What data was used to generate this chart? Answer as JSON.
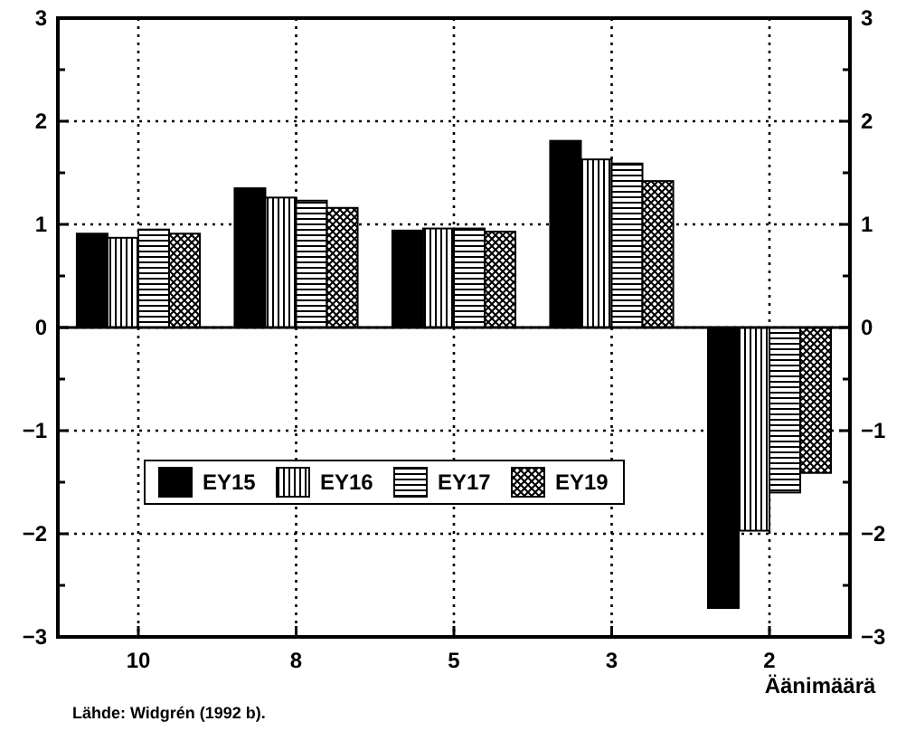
{
  "chart_data": {
    "type": "bar",
    "xlabel": "Äänimäärä",
    "categories": [
      "10",
      "8",
      "5",
      "3",
      "2"
    ],
    "series": [
      {
        "name": "EY15",
        "color": "#000000",
        "values": [
          0.91,
          1.35,
          0.94,
          1.81,
          -2.72
        ]
      },
      {
        "name": "EY16",
        "color": "#000000",
        "values": [
          0.87,
          1.26,
          0.96,
          1.63,
          -1.97
        ]
      },
      {
        "name": "EY17",
        "color": "#000000",
        "values": [
          0.95,
          1.23,
          0.96,
          1.59,
          -1.6
        ]
      },
      {
        "name": "EY19",
        "color": "#000000",
        "values": [
          0.91,
          1.16,
          0.93,
          1.42,
          -1.41
        ]
      }
    ],
    "ylim": [
      -3,
      3
    ],
    "yticks": [
      -3,
      {
        "value": -2.5,
        "label": null
      },
      -2,
      {
        "value": -1.5,
        "label": null
      },
      -1,
      {
        "value": -0.5,
        "label": null
      },
      0,
      {
        "value": 0.5,
        "label": null
      },
      1,
      {
        "value": 1.5,
        "label": null
      },
      2,
      {
        "value": 2.5,
        "label": null
      },
      3
    ],
    "y2lim": [
      -3,
      3
    ],
    "y2ticks": [
      -3,
      {
        "value": -2.5,
        "label": null
      },
      -2,
      {
        "value": -1.5,
        "label": null
      },
      -1,
      {
        "value": -0.5,
        "label": null
      },
      0,
      {
        "value": 0.5,
        "label": null
      },
      1,
      {
        "value": 1.5,
        "label": null
      },
      2,
      {
        "value": 2.5,
        "label": null
      },
      3
    ],
    "grid": true,
    "legend": "bottom left",
    "annotations": [
      "Lähde: Widgrén (1992 b)."
    ]
  }
}
